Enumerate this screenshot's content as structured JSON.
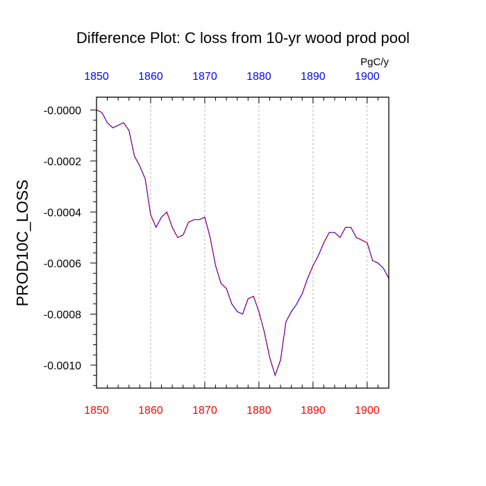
{
  "chart_data": {
    "type": "line",
    "title": "Difference Plot: C loss from 10-yr wood prod pool",
    "units": "PgC/y",
    "ylabel": "PROD10C_LOSS",
    "xlabel": "",
    "xlim": [
      1850,
      1904
    ],
    "ylim": [
      -0.00109,
      5e-05
    ],
    "grid": "x-only-dashed",
    "x_ticks": [
      1850,
      1860,
      1870,
      1880,
      1890,
      1900
    ],
    "x_tick_labels_bottom": [
      "1850",
      "1860",
      "1870",
      "1880",
      "1890",
      "1900"
    ],
    "x_tick_labels_top": [
      "1850",
      "1860",
      "1870",
      "1880",
      "1890",
      "1900"
    ],
    "y_ticks": [
      0,
      -0.0002,
      -0.0004,
      -0.0006,
      -0.0008,
      -0.001
    ],
    "y_tick_labels": [
      "-0.0000",
      "-0.0002",
      "-0.0004",
      "-0.0006",
      "-0.0008",
      "-0.0010"
    ],
    "colors": {
      "line_primary": "#0000ff",
      "line_overlay": "#ff0000",
      "bottom_tick_labels": "#ff0000",
      "top_tick_labels": "#0000ff",
      "grid": "#b4b4b4",
      "axes": "#000000"
    },
    "series": [
      {
        "x": [
          1850,
          1851,
          1852,
          1853,
          1854,
          1855,
          1856,
          1857,
          1858,
          1859,
          1860,
          1861,
          1862,
          1863,
          1864,
          1865,
          1866,
          1867,
          1868,
          1869,
          1870,
          1871,
          1872,
          1873,
          1874,
          1875,
          1876,
          1877,
          1878,
          1879,
          1880,
          1881,
          1882,
          1883,
          1884,
          1885,
          1886,
          1887,
          1888,
          1889,
          1890,
          1891,
          1892,
          1893,
          1894,
          1895,
          1896,
          1897,
          1898,
          1899,
          1900,
          1901,
          1902,
          1903,
          1904
        ],
        "values": [
          0,
          -1e-05,
          -5e-05,
          -7e-05,
          -6e-05,
          -5e-05,
          -8e-05,
          -0.00018,
          -0.00022,
          -0.00027,
          -0.00041,
          -0.00046,
          -0.00042,
          -0.0004,
          -0.00046,
          -0.0005,
          -0.00049,
          -0.00044,
          -0.00043,
          -0.00043,
          -0.00042,
          -0.0005,
          -0.00061,
          -0.00068,
          -0.0007,
          -0.00076,
          -0.00079,
          -0.0008,
          -0.00074,
          -0.00073,
          -0.00079,
          -0.00087,
          -0.00097,
          -0.00104,
          -0.00098,
          -0.00083,
          -0.00079,
          -0.00076,
          -0.00072,
          -0.00066,
          -0.00061,
          -0.00057,
          -0.00052,
          -0.00048,
          -0.00048,
          -0.0005,
          -0.00046,
          -0.00046,
          -0.0005,
          -0.00051,
          -0.00052,
          -0.00059,
          -0.0006,
          -0.00062,
          -0.00066
        ]
      }
    ]
  }
}
